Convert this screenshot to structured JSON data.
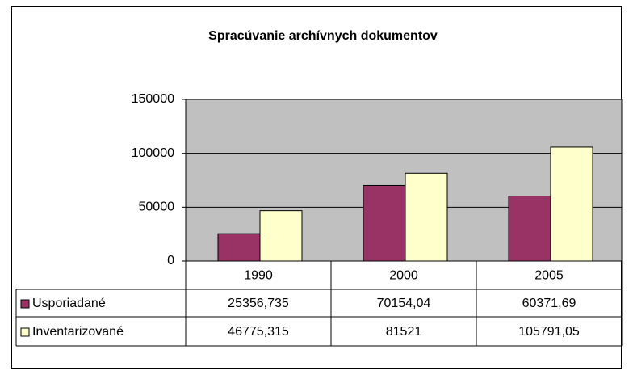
{
  "chart_data": {
    "type": "bar",
    "title": "Spracúvanie archívnych dokumentov",
    "categories": [
      "1990",
      "2000",
      "2005"
    ],
    "series": [
      {
        "name": "Usporiadané",
        "color": "#993366",
        "values": [
          25356.735,
          70154.04,
          60371.69
        ],
        "value_labels": [
          "25356,735",
          "70154,04",
          "60371,69"
        ]
      },
      {
        "name": "Inventarizované",
        "color": "#ffffcc",
        "values": [
          46775.315,
          81521,
          105791.05
        ],
        "value_labels": [
          "46775,315",
          "81521",
          "105791,05"
        ]
      }
    ],
    "ylim": [
      0,
      150000
    ],
    "yticks": [
      0,
      50000,
      100000,
      150000
    ],
    "grid": true
  }
}
